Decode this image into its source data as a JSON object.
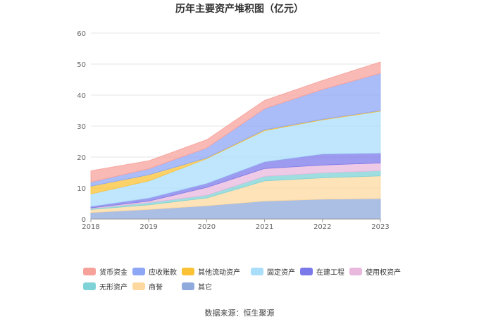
{
  "chart_data": {
    "type": "area",
    "stacked": true,
    "title": "历年主要资产堆积图（亿元）",
    "categories": [
      "2018",
      "2019",
      "2020",
      "2021",
      "2022",
      "2023"
    ],
    "yticks": [
      "0",
      "10",
      "20",
      "30",
      "40",
      "50",
      "60"
    ],
    "ylim": [
      0,
      60
    ],
    "grid": true,
    "legend_position": "bottom",
    "series": [
      {
        "name": "其它",
        "color": "#8faadc",
        "values": [
          2.1,
          3.1,
          4.3,
          5.8,
          6.4,
          6.6
        ]
      },
      {
        "name": "商誉",
        "color": "#fdd9a0",
        "values": [
          1.0,
          1.5,
          2.5,
          6.5,
          6.9,
          7.3
        ]
      },
      {
        "name": "无形资产",
        "color": "#7fd3d6",
        "values": [
          0.3,
          0.7,
          0.9,
          1.5,
          1.6,
          1.7
        ]
      },
      {
        "name": "使用权资产",
        "color": "#e9b8dd",
        "values": [
          0.2,
          0.5,
          2.5,
          2.5,
          2.5,
          2.5
        ]
      },
      {
        "name": "在建工程",
        "color": "#7b79ea",
        "values": [
          0.5,
          1.0,
          1.3,
          2.2,
          3.6,
          3.2
        ]
      },
      {
        "name": "固定资产",
        "color": "#a9defb",
        "values": [
          4.0,
          5.5,
          8.0,
          10.0,
          11.0,
          13.5
        ]
      },
      {
        "name": "其他流动资产",
        "color": "#fbc236",
        "values": [
          2.5,
          2.0,
          0.2,
          0.3,
          0.2,
          0.2
        ]
      },
      {
        "name": "应收账款",
        "color": "#8da7f5",
        "values": [
          1.3,
          1.9,
          3.2,
          6.8,
          9.6,
          12.0
        ]
      },
      {
        "name": "货币资金",
        "color": "#f7a19b",
        "values": [
          3.7,
          2.6,
          2.7,
          2.7,
          2.9,
          3.7
        ]
      }
    ]
  },
  "legend_order": [
    "货币资金",
    "应收账款",
    "其他流动资产",
    "固定资产",
    "在建工程",
    "使用权资产",
    "无形资产",
    "商誉",
    "其它"
  ],
  "source_note": "数据来源：恒生聚源"
}
